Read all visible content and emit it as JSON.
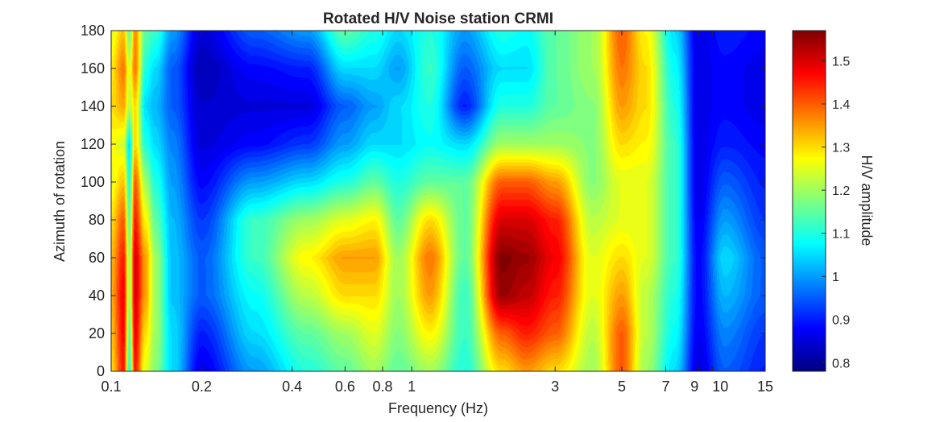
{
  "chart_data": {
    "type": "heatmap",
    "subtype": "filled-contour",
    "title": "Rotated H/V Noise station CRMI",
    "xlabel": "Frequency (Hz)",
    "ylabel": "Azimuth of rotation",
    "colorbar_label": "H/V amplitude",
    "colormap": "jet",
    "x_scale": "log",
    "xlim": [
      0.1,
      15
    ],
    "ylim": [
      0,
      180
    ],
    "clim": [
      0.78,
      1.57
    ],
    "x_ticks": [
      {
        "value": 0.1,
        "label": "0.1"
      },
      {
        "value": 0.2,
        "label": "0.2"
      },
      {
        "value": 0.4,
        "label": "0.4"
      },
      {
        "value": 0.6,
        "label": "0.6"
      },
      {
        "value": 0.8,
        "label": "0.8"
      },
      {
        "value": 1,
        "label": "1"
      },
      {
        "value": 3,
        "label": "3"
      },
      {
        "value": 5,
        "label": "5"
      },
      {
        "value": 7,
        "label": "7"
      },
      {
        "value": 9,
        "label": "9"
      },
      {
        "value": 10,
        "label": "10"
      },
      {
        "value": 15,
        "label": "15"
      }
    ],
    "y_ticks": [
      0,
      20,
      40,
      60,
      80,
      100,
      120,
      140,
      160,
      180
    ],
    "colorbar_ticks": [
      0.8,
      0.9,
      1,
      1.1,
      1.2,
      1.3,
      1.4,
      1.5
    ],
    "frequencies": [
      0.1,
      0.11,
      0.115,
      0.12,
      0.13,
      0.14,
      0.16,
      0.2,
      0.3,
      0.45,
      0.6,
      0.75,
      0.9,
      1.15,
      1.5,
      2.0,
      2.4,
      3.0,
      4.0,
      5.0,
      6.0,
      7.5,
      9.0,
      11.0,
      15.0
    ],
    "azimuths": [
      0,
      20,
      40,
      60,
      80,
      100,
      120,
      140,
      160,
      180
    ],
    "values": [
      [
        1.3,
        1.32,
        1.34,
        1.33,
        1.3,
        1.26,
        1.27,
        1.3,
        1.29,
        1.25
      ],
      [
        1.45,
        1.47,
        1.48,
        1.45,
        1.4,
        1.32,
        1.24,
        1.34,
        1.38,
        1.32
      ],
      [
        1.1,
        1.15,
        1.2,
        1.2,
        1.15,
        1.1,
        1.05,
        1.22,
        1.25,
        1.15
      ],
      [
        1.45,
        1.48,
        1.5,
        1.5,
        1.45,
        1.4,
        1.3,
        1.3,
        1.38,
        1.36
      ],
      [
        1.25,
        1.3,
        1.35,
        1.35,
        1.28,
        1.2,
        1.1,
        1.05,
        1.1,
        1.15
      ],
      [
        1.18,
        1.2,
        1.2,
        1.2,
        1.15,
        1.1,
        1.05,
        1.02,
        1.05,
        1.12
      ],
      [
        1.05,
        1.05,
        1.03,
        1.03,
        1.02,
        1.0,
        0.98,
        0.95,
        0.95,
        1.0
      ],
      [
        0.86,
        0.9,
        0.95,
        0.95,
        0.92,
        0.88,
        0.85,
        0.84,
        0.82,
        0.85
      ],
      [
        1.0,
        1.05,
        1.08,
        1.12,
        1.12,
        1.0,
        0.88,
        0.85,
        0.88,
        0.95
      ],
      [
        1.1,
        1.15,
        1.22,
        1.28,
        1.2,
        1.05,
        0.92,
        0.85,
        0.9,
        1.0
      ],
      [
        1.15,
        1.2,
        1.3,
        1.35,
        1.25,
        1.1,
        1.0,
        0.95,
        1.05,
        1.15
      ],
      [
        1.2,
        1.25,
        1.3,
        1.35,
        1.28,
        1.15,
        1.05,
        1.0,
        1.05,
        1.1
      ],
      [
        1.15,
        1.18,
        1.2,
        1.2,
        1.15,
        1.1,
        1.05,
        1.05,
        1.0,
        1.05
      ],
      [
        1.2,
        1.28,
        1.35,
        1.38,
        1.3,
        1.15,
        1.08,
        1.1,
        1.12,
        1.1
      ],
      [
        1.1,
        1.12,
        1.12,
        1.15,
        1.15,
        1.15,
        1.05,
        0.9,
        0.95,
        1.0
      ],
      [
        1.3,
        1.4,
        1.55,
        1.57,
        1.5,
        1.4,
        1.2,
        1.1,
        1.05,
        1.1
      ],
      [
        1.35,
        1.45,
        1.52,
        1.55,
        1.5,
        1.4,
        1.2,
        1.1,
        1.05,
        1.08
      ],
      [
        1.3,
        1.4,
        1.45,
        1.48,
        1.45,
        1.35,
        1.2,
        1.15,
        1.15,
        1.15
      ],
      [
        1.2,
        1.22,
        1.25,
        1.25,
        1.22,
        1.18,
        1.18,
        1.18,
        1.2,
        1.2
      ],
      [
        1.4,
        1.4,
        1.35,
        1.3,
        1.25,
        1.25,
        1.3,
        1.35,
        1.38,
        1.4
      ],
      [
        1.2,
        1.22,
        1.22,
        1.25,
        1.25,
        1.25,
        1.28,
        1.3,
        1.3,
        1.28
      ],
      [
        1.05,
        1.08,
        1.1,
        1.12,
        1.12,
        1.12,
        1.12,
        1.1,
        1.08,
        1.05
      ],
      [
        0.85,
        0.87,
        0.88,
        0.88,
        0.87,
        0.86,
        0.86,
        0.86,
        0.86,
        0.86
      ],
      [
        0.95,
        0.98,
        1.02,
        1.05,
        1.0,
        0.95,
        0.9,
        0.88,
        0.88,
        0.9
      ],
      [
        0.9,
        0.92,
        0.95,
        0.95,
        0.92,
        0.9,
        0.88,
        0.86,
        0.86,
        0.88
      ]
    ]
  }
}
